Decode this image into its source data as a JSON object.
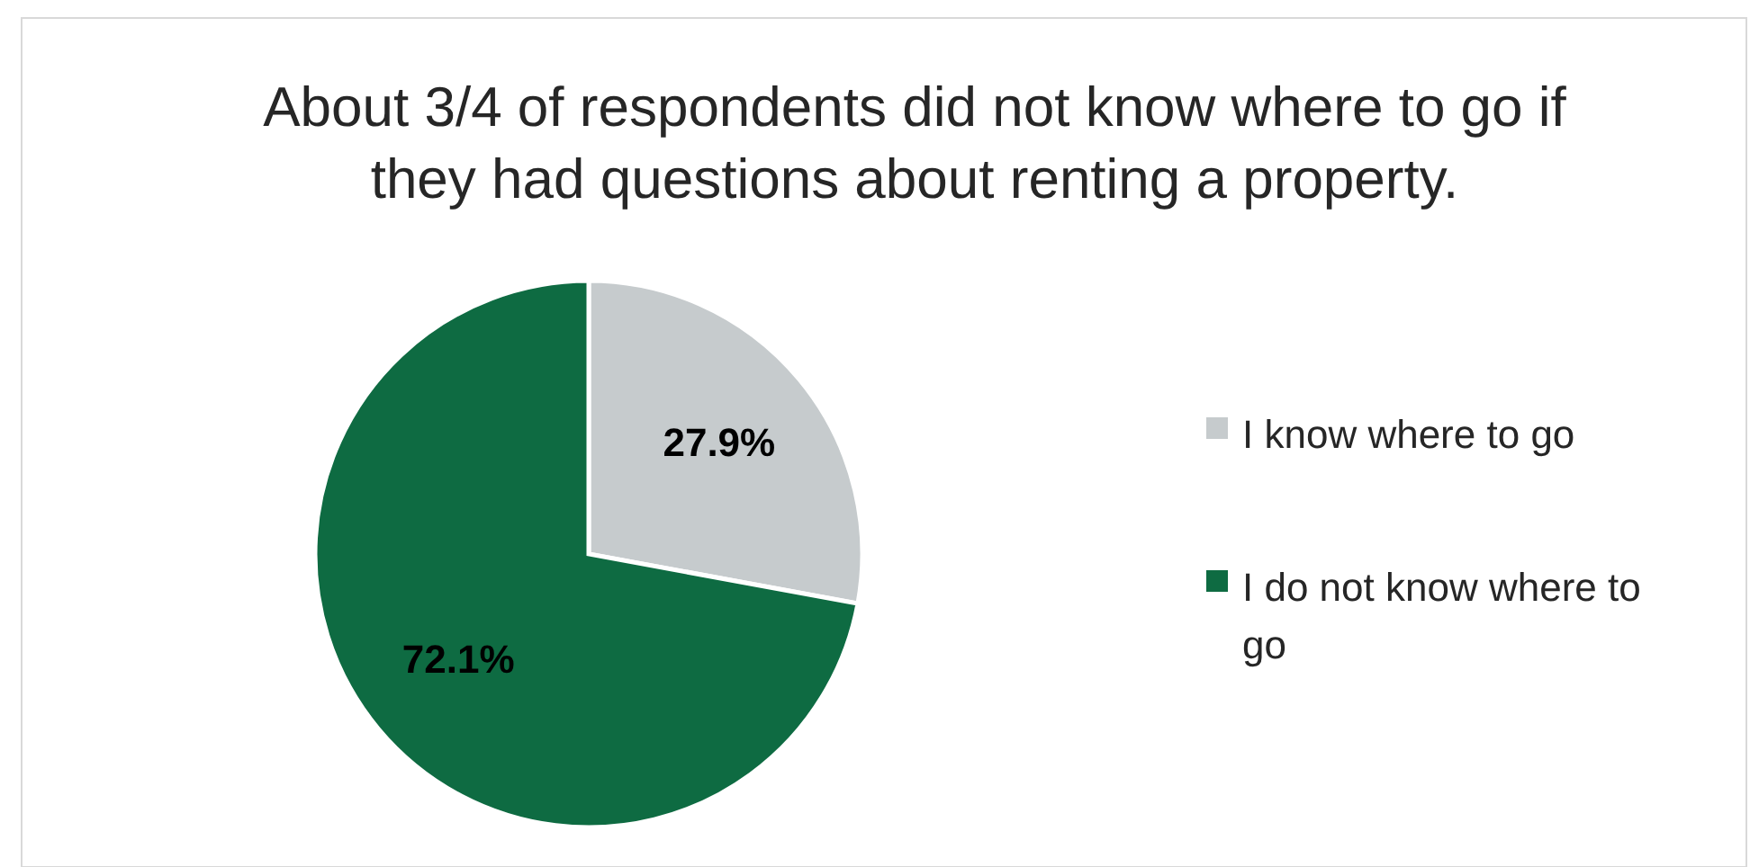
{
  "chart_data": {
    "type": "pie",
    "title": "About 3/4 of respondents did not know where to go if they had questions about renting a property.",
    "categories": [
      "I know where to go",
      "I do not know where to go"
    ],
    "values": [
      27.9,
      72.1
    ],
    "colors": [
      "#c6cbcd",
      "#0e6b42"
    ],
    "value_labels": [
      "27.9%",
      "72.1%"
    ],
    "legend": "right"
  }
}
